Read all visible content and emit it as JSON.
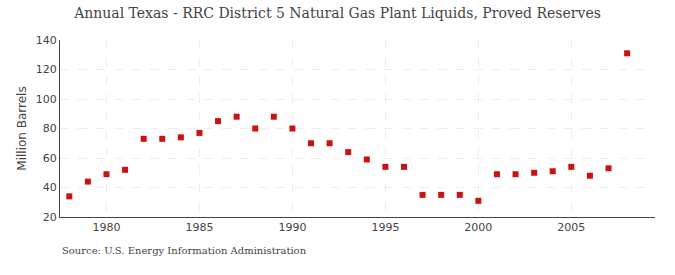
{
  "chart_data": {
    "type": "scatter",
    "title": "Annual Texas - RRC District 5 Natural Gas Plant Liquids, Proved Reserves",
    "ylabel": "Million Barrels",
    "source": "Source: U.S. Energy Information Administration",
    "x": [
      1978,
      1979,
      1980,
      1981,
      1982,
      1983,
      1984,
      1985,
      1986,
      1987,
      1988,
      1989,
      1990,
      1991,
      1992,
      1993,
      1994,
      1995,
      1996,
      1997,
      1998,
      1999,
      2000,
      2001,
      2002,
      2003,
      2004,
      2005,
      2006,
      2007,
      2008
    ],
    "values": [
      34,
      44,
      49,
      52,
      73,
      73,
      74,
      77,
      85,
      88,
      80,
      88,
      80,
      70,
      70,
      64,
      59,
      54,
      54,
      35,
      35,
      35,
      31,
      49,
      49,
      50,
      51,
      54,
      48,
      53,
      131
    ],
    "color": "#cc1111",
    "marker": "square",
    "xlim": [
      1977.5,
      2009.5
    ],
    "xticks": [
      1980,
      1985,
      1990,
      1995,
      2000,
      2005
    ],
    "ylim": [
      20,
      140
    ],
    "yticks": [
      20,
      40,
      60,
      80,
      100,
      120,
      140
    ],
    "grid": true
  }
}
